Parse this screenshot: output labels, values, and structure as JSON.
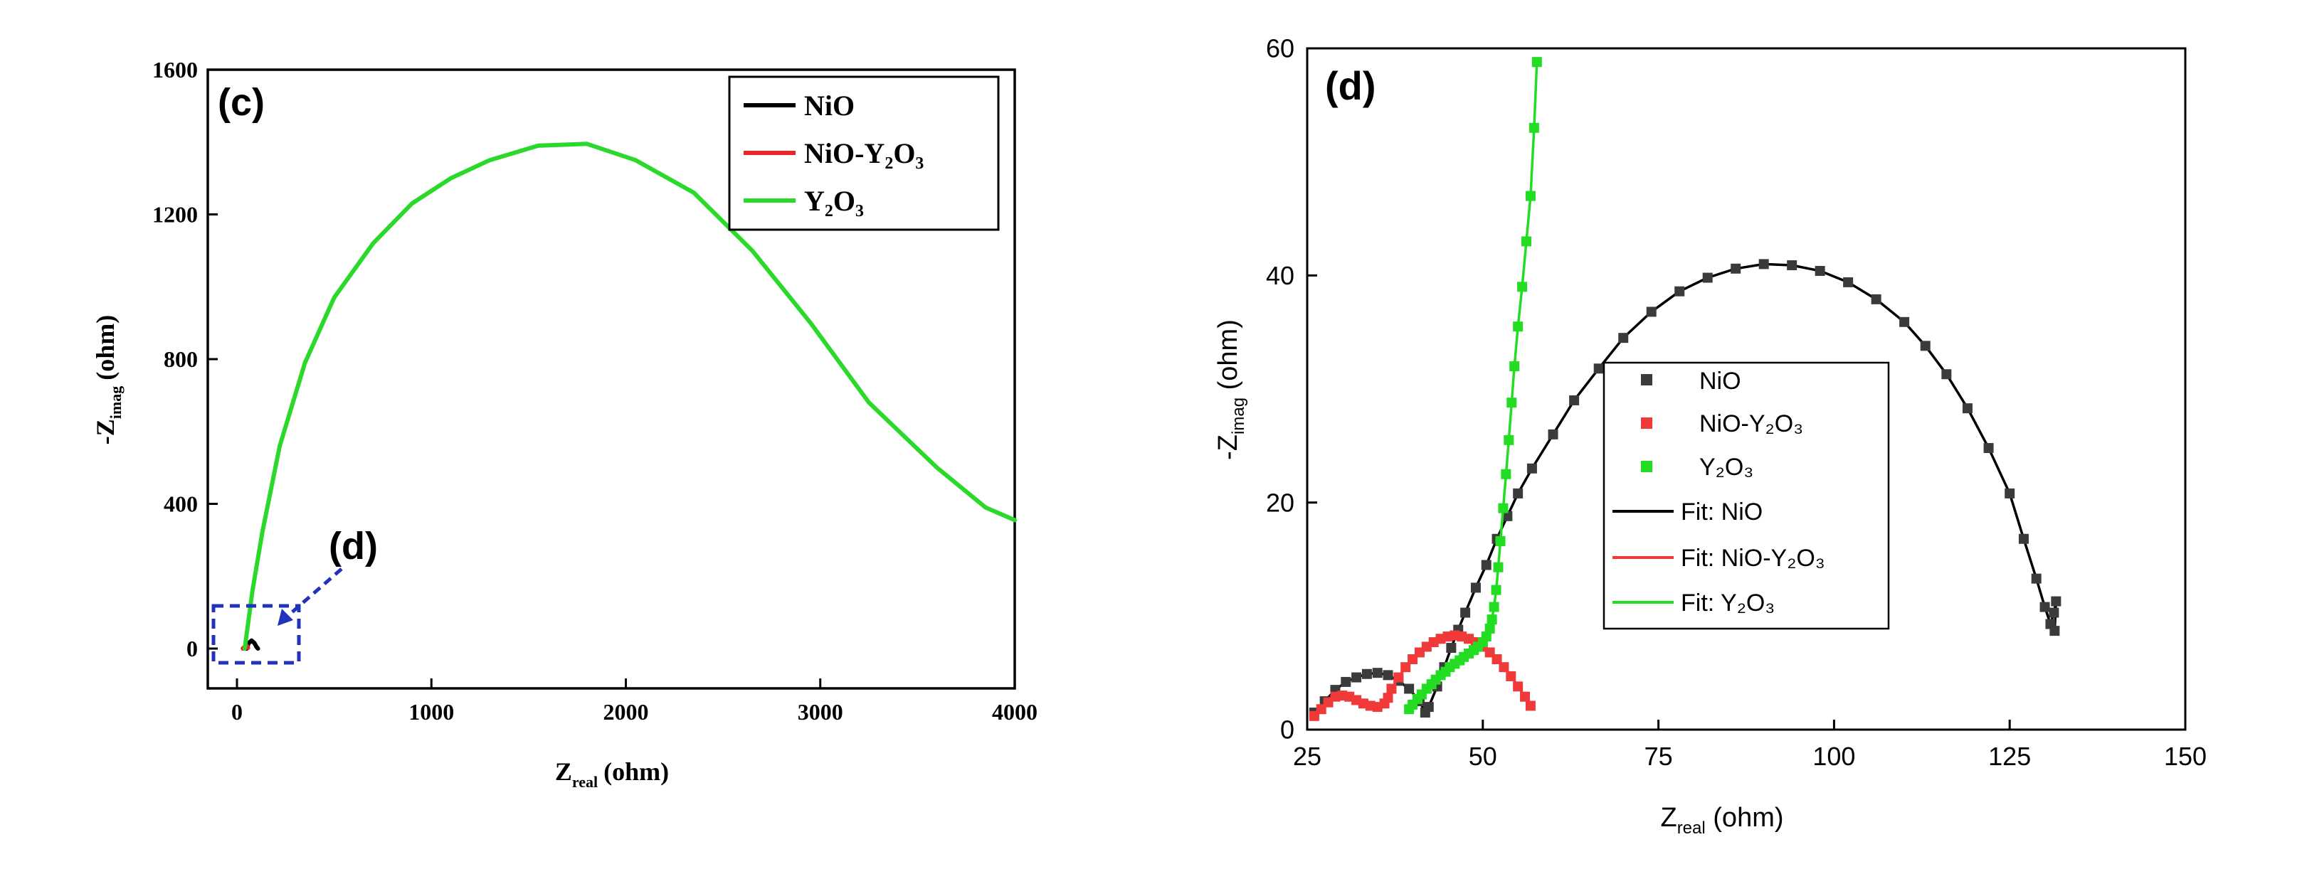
{
  "chart_data": [
    {
      "panel_label": "(c)",
      "type": "line",
      "xlabel_main": "Z",
      "xlabel_sub": "real",
      "xlabel_unit": "(ohm)",
      "ylabel_prefix": "-Z",
      "ylabel_sub": "imag",
      "ylabel_unit": "(ohm)",
      "xlim": [
        -150,
        4000
      ],
      "ylim": [
        -110,
        1600
      ],
      "xticks": [
        0,
        1000,
        2000,
        3000,
        4000
      ],
      "yticks": [
        0,
        400,
        800,
        1200,
        1600
      ],
      "inset_label": "(d)",
      "legend": [
        {
          "label": "NiO",
          "color": "#000000"
        },
        {
          "label": "NiO-Y₂O₃",
          "color": "#e8252a"
        },
        {
          "label": "Y₂O₃",
          "color": "#2bd92b"
        }
      ],
      "series": [
        {
          "name": "NiO",
          "color": "#000000",
          "x": [
            50,
            60,
            75,
            90,
            100,
            108
          ],
          "y": [
            0,
            15,
            22,
            15,
            5,
            0
          ]
        },
        {
          "name": "NiO-Y2O3",
          "color": "#e8252a",
          "x": [
            30,
            40,
            50,
            57
          ],
          "y": [
            0,
            5,
            8,
            2
          ]
        },
        {
          "name": "Y2O3",
          "color": "#2bd92b",
          "x": [
            40,
            55,
            80,
            130,
            220,
            350,
            500,
            700,
            900,
            1100,
            1300,
            1550,
            1800,
            2050,
            2350,
            2650,
            2950,
            3250,
            3600,
            3850,
            4000
          ],
          "y": [
            0,
            60,
            160,
            320,
            560,
            790,
            970,
            1120,
            1230,
            1300,
            1350,
            1390,
            1395,
            1350,
            1260,
            1100,
            900,
            680,
            500,
            390,
            355
          ]
        }
      ]
    },
    {
      "panel_label": "(d)",
      "type": "scatter",
      "xlabel_main": "Z",
      "xlabel_sub": "real",
      "xlabel_unit": " (ohm)",
      "ylabel_prefix": "-Z",
      "ylabel_sub": "imag",
      "ylabel_unit": " (ohm)",
      "xlim": [
        25,
        150
      ],
      "ylim": [
        0,
        60
      ],
      "xticks": [
        25,
        50,
        75,
        100,
        125,
        150
      ],
      "yticks": [
        0,
        20,
        40,
        60
      ],
      "legend_markers": [
        {
          "label": "NiO",
          "color": "#3b3b3b"
        },
        {
          "label": "NiO-Y₂O₃",
          "color": "#f03a3a"
        },
        {
          "label": "Y₂O₃",
          "color": "#22dd22"
        }
      ],
      "legend_lines": [
        {
          "label": "Fit: NiO",
          "color": "#000000"
        },
        {
          "label": "Fit: NiO-Y₂O₃",
          "color": "#f03a3a"
        },
        {
          "label": "Fit: Y₂O₃",
          "color": "#22dd22"
        }
      ],
      "series": [
        {
          "name": "NiO",
          "color": "#3b3b3b",
          "line_color": "#000000",
          "x": [
            26,
            27.5,
            29,
            30.5,
            32,
            33.5,
            35,
            36.5,
            38,
            39.5,
            41,
            41.8,
            42.3,
            43.5,
            44.5,
            45.5,
            46.5,
            47.5,
            49,
            50.5,
            52,
            53.5,
            55,
            57,
            60,
            63,
            66.5,
            70,
            74,
            78,
            82,
            86,
            90,
            94,
            98,
            102,
            106,
            110,
            113,
            116,
            119,
            122,
            125,
            127,
            128.8,
            130,
            130.8,
            131.3,
            131.6,
            131.4
          ],
          "y": [
            1.5,
            2.5,
            3.5,
            4.2,
            4.6,
            4.9,
            5.0,
            4.8,
            4.3,
            3.6,
            2.5,
            1.5,
            2.0,
            3.8,
            5.5,
            7.2,
            8.8,
            10.3,
            12.5,
            14.5,
            16.8,
            18.8,
            20.8,
            23.0,
            26.0,
            29.0,
            31.8,
            34.5,
            36.8,
            38.6,
            39.8,
            40.6,
            41.0,
            40.9,
            40.4,
            39.4,
            37.9,
            35.9,
            33.8,
            31.3,
            28.3,
            24.8,
            20.8,
            16.8,
            13.3,
            10.8,
            9.3,
            10.3,
            11.3,
            8.7
          ]
        },
        {
          "name": "NiO-Y2O3",
          "color": "#f03a3a",
          "line_color": "#f03a3a",
          "x": [
            26,
            27,
            28,
            29,
            30,
            31,
            32,
            33,
            34,
            35,
            36,
            36.5,
            37,
            38,
            39,
            40,
            41,
            42,
            43,
            44,
            45,
            46,
            47,
            48,
            49,
            50,
            51,
            52,
            53,
            54,
            55,
            56,
            56.8
          ],
          "y": [
            1.2,
            1.8,
            2.4,
            2.9,
            3.0,
            2.9,
            2.6,
            2.3,
            2.1,
            2.0,
            2.3,
            2.8,
            3.6,
            4.6,
            5.5,
            6.2,
            6.8,
            7.3,
            7.7,
            8.0,
            8.2,
            8.3,
            8.2,
            8.0,
            7.7,
            7.3,
            6.8,
            6.2,
            5.5,
            4.7,
            3.8,
            2.9,
            2.1
          ]
        },
        {
          "name": "Y2O3",
          "color": "#22dd22",
          "line_color": "#22dd22",
          "x": [
            39.5,
            40,
            40.7,
            41.3,
            42,
            42.7,
            43.3,
            44,
            44.7,
            45.3,
            46,
            46.7,
            47.3,
            48,
            48.7,
            49.3,
            50,
            50.5,
            51,
            51.3,
            51.6,
            51.9,
            52.2,
            52.5,
            52.9,
            53.3,
            53.7,
            54.1,
            54.5,
            55,
            55.6,
            56.2,
            56.8,
            57.3,
            57.7
          ],
          "y": [
            1.8,
            2.2,
            2.7,
            3.1,
            3.6,
            4.0,
            4.4,
            4.8,
            5.1,
            5.5,
            5.8,
            6.1,
            6.4,
            6.7,
            7.0,
            7.3,
            7.7,
            8.2,
            8.9,
            9.7,
            10.8,
            12.3,
            14.3,
            16.6,
            19.5,
            22.5,
            25.5,
            28.8,
            32.0,
            35.5,
            39.0,
            43.0,
            47.0,
            53.0,
            58.8
          ]
        }
      ]
    }
  ]
}
